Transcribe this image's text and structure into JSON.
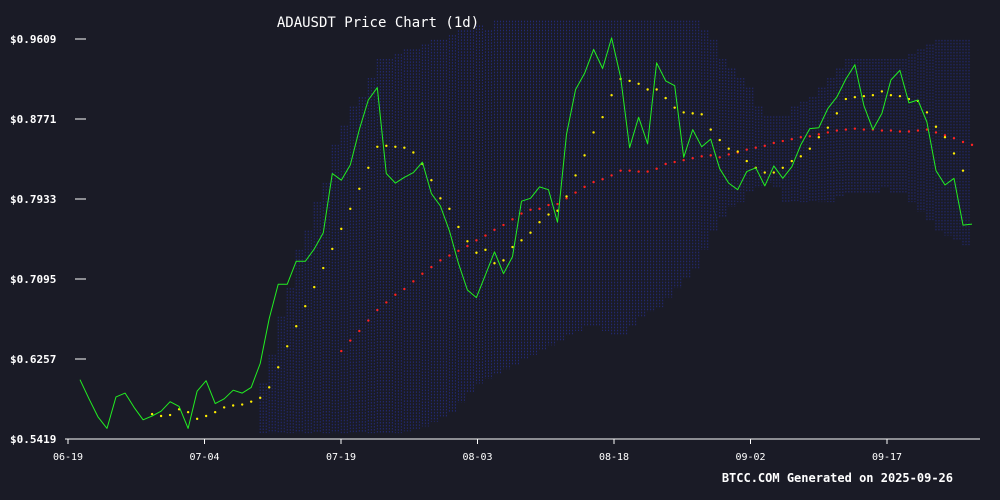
{
  "chart_data": {
    "type": "line",
    "title": "ADAUSDT Price Chart (1d)",
    "footer": "BTCC.COM Generated on 2025-09-26",
    "ylim": [
      0.5419,
      0.9609
    ],
    "y_ticks": [
      "$0.9609",
      "$0.8771",
      "$0.7933",
      "$0.7095",
      "$0.6257",
      "$0.5419"
    ],
    "x_ticks": [
      "06-19",
      "07-04",
      "07-19",
      "08-03",
      "08-18",
      "09-02",
      "09-17"
    ],
    "x_tick_index": [
      0,
      15,
      30,
      45,
      60,
      75,
      90
    ],
    "grid": false,
    "colors": {
      "background": "#1a1b26",
      "price": "#22ee22",
      "ma_short": "#ffee00",
      "ma_long": "#ff2222",
      "bands": "#232a78",
      "text": "#ffffff"
    },
    "series": [
      {
        "key": "price",
        "values": [
          0.604,
          0.584,
          0.565,
          0.553,
          0.586,
          0.59,
          0.575,
          0.562,
          0.566,
          0.571,
          0.581,
          0.576,
          0.553,
          0.592,
          0.603,
          0.579,
          0.584,
          0.593,
          0.59,
          0.596,
          0.621,
          0.668,
          0.704,
          0.704,
          0.728,
          0.728,
          0.741,
          0.758,
          0.82,
          0.813,
          0.829,
          0.866,
          0.897,
          0.91,
          0.82,
          0.81,
          0.816,
          0.821,
          0.832,
          0.799,
          0.786,
          0.76,
          0.726,
          0.698,
          0.69,
          0.714,
          0.738,
          0.715,
          0.733,
          0.791,
          0.794,
          0.806,
          0.803,
          0.769,
          0.861,
          0.908,
          0.925,
          0.95,
          0.93,
          0.962,
          0.921,
          0.847,
          0.879,
          0.851,
          0.936,
          0.917,
          0.912,
          0.837,
          0.866,
          0.848,
          0.856,
          0.825,
          0.81,
          0.803,
          0.822,
          0.826,
          0.807,
          0.828,
          0.815,
          0.827,
          0.85,
          0.867,
          0.868,
          0.888,
          0.9,
          0.919,
          0.934,
          0.891,
          0.866,
          0.883,
          0.918,
          0.928,
          0.894,
          0.897,
          0.874,
          0.823,
          0.808,
          0.815,
          0.766,
          0.767
        ]
      },
      {
        "key": "ma_short",
        "values": [
          null,
          null,
          null,
          null,
          null,
          null,
          null,
          null,
          0.568,
          0.566,
          0.567,
          0.573,
          0.57,
          0.563,
          0.566,
          0.57,
          0.575,
          0.577,
          0.578,
          0.581,
          0.585,
          0.596,
          0.617,
          0.639,
          0.66,
          0.681,
          0.701,
          0.721,
          0.741,
          0.762,
          0.783,
          0.804,
          0.826,
          0.848,
          0.849,
          0.848,
          0.847,
          0.842,
          0.83,
          0.813,
          0.794,
          0.783,
          0.764,
          0.749,
          0.737,
          0.74,
          0.726,
          0.729,
          0.743,
          0.75,
          0.758,
          0.769,
          0.777,
          0.781,
          0.796,
          0.818,
          0.839,
          0.863,
          0.879,
          0.902,
          0.919,
          0.917,
          0.914,
          0.908,
          0.908,
          0.899,
          0.889,
          0.884,
          0.883,
          0.882,
          0.866,
          0.855,
          0.846,
          0.843,
          0.833,
          0.826,
          0.821,
          0.821,
          0.826,
          0.833,
          0.838,
          0.846,
          0.858,
          0.868,
          0.883,
          0.898,
          0.9,
          0.901,
          0.902,
          0.906,
          0.902,
          0.901,
          0.898,
          0.896,
          0.884,
          0.869,
          0.858,
          0.841,
          0.823
        ]
      },
      {
        "key": "ma_long",
        "values": [
          null,
          null,
          null,
          null,
          null,
          null,
          null,
          null,
          null,
          null,
          null,
          null,
          null,
          null,
          null,
          null,
          null,
          null,
          null,
          null,
          null,
          null,
          null,
          null,
          null,
          null,
          null,
          null,
          null,
          0.634,
          0.645,
          0.655,
          0.666,
          0.677,
          0.685,
          0.693,
          0.699,
          0.707,
          0.715,
          0.722,
          0.729,
          0.734,
          0.739,
          0.744,
          0.75,
          0.755,
          0.761,
          0.766,
          0.772,
          0.778,
          0.782,
          0.783,
          0.787,
          0.788,
          0.794,
          0.8,
          0.806,
          0.811,
          0.814,
          0.818,
          0.823,
          0.823,
          0.822,
          0.822,
          0.825,
          0.83,
          0.832,
          0.834,
          0.836,
          0.838,
          0.839,
          0.837,
          0.84,
          0.842,
          0.845,
          0.847,
          0.849,
          0.852,
          0.854,
          0.856,
          0.858,
          0.859,
          0.861,
          0.863,
          0.865,
          0.866,
          0.867,
          0.866,
          0.866,
          0.865,
          0.865,
          0.864,
          0.864,
          0.865,
          0.866,
          0.863,
          0.86,
          0.857,
          0.853,
          0.85
        ]
      },
      {
        "key": "band_upper",
        "values": [
          null,
          null,
          null,
          null,
          null,
          null,
          null,
          null,
          null,
          null,
          null,
          null,
          null,
          null,
          null,
          null,
          null,
          null,
          null,
          null,
          0.6,
          0.63,
          0.67,
          0.7,
          0.74,
          0.76,
          0.79,
          0.81,
          0.85,
          0.87,
          0.89,
          0.9,
          0.92,
          0.94,
          0.94,
          0.945,
          0.95,
          0.95,
          0.955,
          0.96,
          0.96,
          0.965,
          0.97,
          0.97,
          0.975,
          0.97,
          0.98,
          0.98,
          0.98,
          0.98,
          0.98,
          0.98,
          0.98,
          0.98,
          0.98,
          0.98,
          0.98,
          0.98,
          0.98,
          0.98,
          0.98,
          0.98,
          0.98,
          0.98,
          0.98,
          0.98,
          0.98,
          0.98,
          0.98,
          0.97,
          0.96,
          0.94,
          0.93,
          0.92,
          0.91,
          0.89,
          0.88,
          0.88,
          0.88,
          0.89,
          0.895,
          0.9,
          0.91,
          0.92,
          0.93,
          0.94,
          0.94,
          0.94,
          0.94,
          0.94,
          0.94,
          0.94,
          0.945,
          0.95,
          0.955,
          0.96,
          0.96,
          0.96,
          0.96
        ]
      },
      {
        "key": "band_lower",
        "values": [
          null,
          null,
          null,
          null,
          null,
          null,
          null,
          null,
          null,
          null,
          null,
          null,
          null,
          null,
          null,
          null,
          null,
          null,
          null,
          null,
          0.548,
          0.548,
          0.548,
          0.548,
          0.548,
          0.548,
          0.548,
          0.548,
          0.548,
          0.548,
          0.548,
          0.548,
          0.548,
          0.548,
          0.548,
          0.548,
          0.55,
          0.552,
          0.555,
          0.56,
          0.565,
          0.57,
          0.58,
          0.59,
          0.6,
          0.605,
          0.61,
          0.615,
          0.62,
          0.625,
          0.63,
          0.635,
          0.64,
          0.645,
          0.65,
          0.655,
          0.66,
          0.66,
          0.655,
          0.65,
          0.65,
          0.66,
          0.67,
          0.675,
          0.68,
          0.69,
          0.7,
          0.71,
          0.72,
          0.74,
          0.76,
          0.775,
          0.785,
          0.79,
          0.8,
          0.805,
          0.81,
          0.805,
          0.79,
          0.79,
          0.79,
          0.79,
          0.79,
          0.79,
          0.795,
          0.8,
          0.8,
          0.8,
          0.8,
          0.805,
          0.8,
          0.8,
          0.79,
          0.78,
          0.77,
          0.76,
          0.755,
          0.75,
          0.745
        ]
      }
    ]
  }
}
